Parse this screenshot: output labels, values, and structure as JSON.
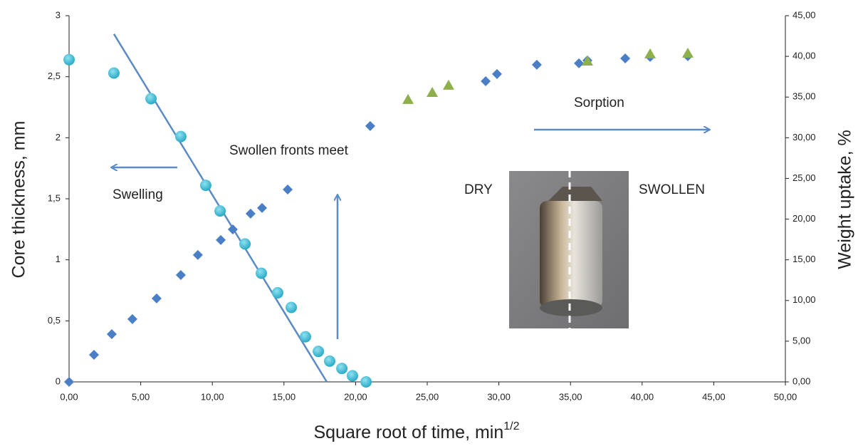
{
  "chart_data": {
    "type": "scatter",
    "xlabel": "Square root of time, min",
    "xlabel_sup": "1/2",
    "ylabel": "Core thickness, mm",
    "y2label": "Weight uptake, %",
    "xlim": [
      0,
      50
    ],
    "ylim": [
      0,
      3
    ],
    "y2lim": [
      0,
      45
    ],
    "xticks": [
      {
        "value": 0,
        "label": "0,00"
      },
      {
        "value": 5,
        "label": "5,00"
      },
      {
        "value": 10,
        "label": "10,00"
      },
      {
        "value": 15,
        "label": "15,00"
      },
      {
        "value": 20,
        "label": "20,00"
      },
      {
        "value": 25,
        "label": "25,00"
      },
      {
        "value": 30,
        "label": "30,00"
      },
      {
        "value": 35,
        "label": "35,00"
      },
      {
        "value": 40,
        "label": "40,00"
      },
      {
        "value": 45,
        "label": "45,00"
      },
      {
        "value": 50,
        "label": "50,00"
      }
    ],
    "yticks": [
      0,
      {
        "value": 0.5,
        "label": "0,5"
      },
      1,
      {
        "value": 1.5,
        "label": "1,5"
      },
      2,
      {
        "value": 2.5,
        "label": "2,5"
      },
      3
    ],
    "y2ticks": [
      {
        "value": 0,
        "label": "0,00"
      },
      {
        "value": 5,
        "label": "5,00"
      },
      {
        "value": 10,
        "label": "10,00"
      },
      {
        "value": 15,
        "label": "15,00"
      },
      {
        "value": 20,
        "label": "20,00"
      },
      {
        "value": 25,
        "label": "25,00"
      },
      {
        "value": 30,
        "label": "30,00"
      },
      {
        "value": 35,
        "label": "35,00"
      },
      {
        "value": 40,
        "label": "40,00"
      },
      {
        "value": 45,
        "label": "45,00"
      }
    ],
    "series": [
      {
        "marker": "circle",
        "color": "#3cb9d3",
        "axis": "y",
        "x": [
          0,
          3.13,
          5.72,
          7.8,
          9.54,
          10.54,
          12.28,
          13.42,
          14.56,
          15.51,
          16.5,
          17.4,
          18.19,
          19.04,
          19.78,
          20.73
        ],
        "values": [
          2.64,
          2.53,
          2.32,
          2.01,
          1.61,
          1.4,
          1.13,
          0.89,
          0.73,
          0.61,
          0.37,
          0.25,
          0.17,
          0.11,
          0.05,
          0
        ]
      },
      {
        "marker": "diamond",
        "color": "#4a7fc6",
        "axis": "y2",
        "x": [
          0,
          1.74,
          2.98,
          4.42,
          6.11,
          7.8,
          8.99,
          10.59,
          11.43,
          12.67,
          13.47,
          15.26,
          21.02,
          29.08,
          29.87,
          32.65,
          35.59,
          36.18,
          38.82,
          40.56,
          43.19
        ],
        "values": [
          0,
          3.33,
          5.87,
          7.71,
          10.25,
          13.13,
          15.59,
          17.43,
          18.74,
          20.67,
          21.37,
          23.64,
          31.44,
          36.95,
          37.83,
          38.97,
          39.14,
          39.49,
          39.75,
          39.93,
          40.02
        ]
      },
      {
        "marker": "triangle",
        "color": "#8db04a",
        "axis": "y2",
        "x": [
          23.66,
          25.35,
          26.49,
          36.18,
          40.56,
          43.19
        ],
        "values": [
          34.68,
          35.55,
          36.43,
          39.4,
          40.28,
          40.37
        ]
      }
    ],
    "trendline": {
      "color": "#5b8ac5",
      "x": [
        3.13,
        17.99
      ],
      "values": [
        2.85,
        0
      ]
    },
    "annotations": [
      "Swelling",
      "Swollen fronts meet",
      "Sorption",
      "DRY",
      "SWOLLEN"
    ]
  }
}
